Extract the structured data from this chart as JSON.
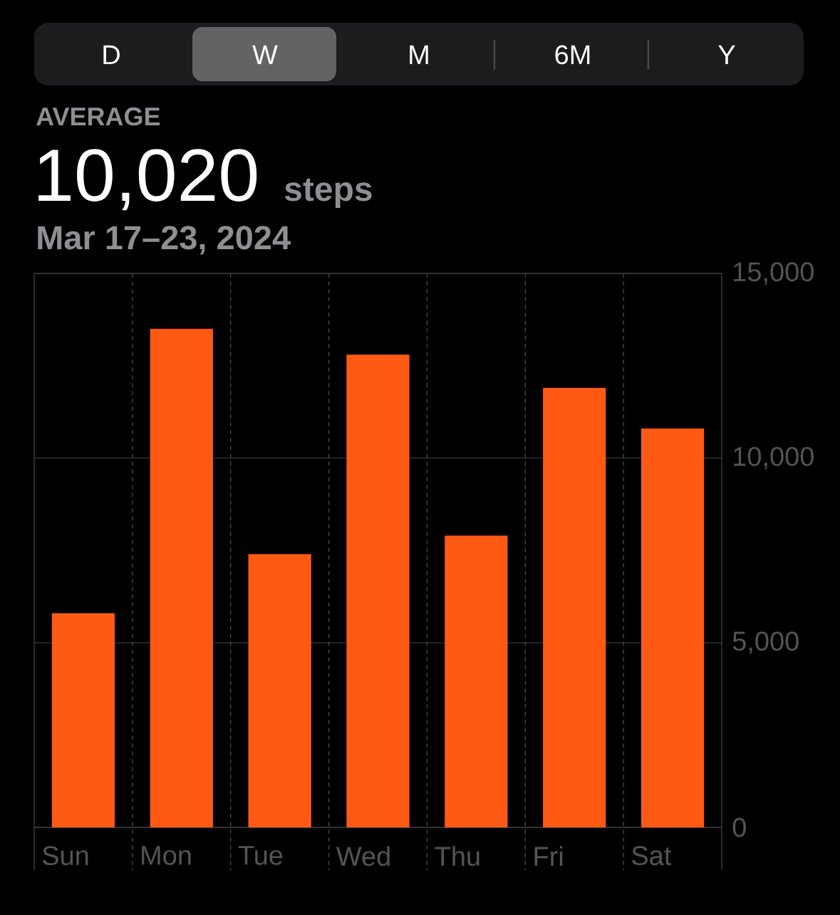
{
  "chart_data": {
    "type": "bar",
    "title": "AVERAGE",
    "subtitle": "Mar 17–23, 2024",
    "annotations": [
      "D",
      "W",
      "M",
      "6M",
      "Y",
      "10,020",
      "steps"
    ],
    "categories": [
      "Sun",
      "Mon",
      "Tue",
      "Wed",
      "Thu",
      "Fri",
      "Sat"
    ],
    "values": [
      5800,
      13500,
      7400,
      12800,
      7900,
      11900,
      10800
    ],
    "color": "#ff5a14",
    "ylim": [
      0,
      15000
    ],
    "yticks": [
      0,
      {
        "value": 5000,
        "label": "5,000"
      },
      {
        "value": 10000,
        "label": "10,000"
      },
      {
        "value": 15000,
        "label": "15,000"
      }
    ],
    "grid": true
  }
}
